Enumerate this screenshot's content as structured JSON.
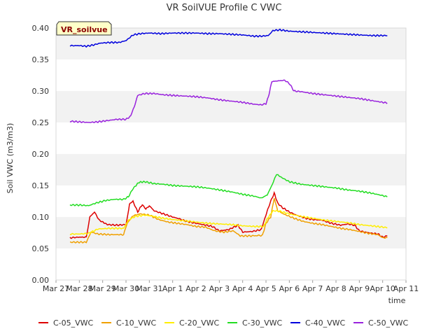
{
  "chart_data": {
    "type": "line",
    "title": "VR SoilVUE Profile C VWC",
    "xlabel": "time",
    "ylabel": "Soil VWC (m3/m3)",
    "badge": "VR_soilvue",
    "x_ticks": [
      "Mar 27",
      "Mar 28",
      "Mar 29",
      "Mar 30",
      "Mar 31",
      "Apr 1",
      "Apr 2",
      "Apr 3",
      "Apr 4",
      "Apr 5",
      "Apr 6",
      "Apr 7",
      "Apr 8",
      "Apr 9",
      "Apr 10",
      "Apr 11"
    ],
    "y_ticks": [
      "0.00",
      "0.05",
      "0.10",
      "0.15",
      "0.20",
      "0.25",
      "0.30",
      "0.35",
      "0.40"
    ],
    "xlim": [
      0,
      15
    ],
    "ylim": [
      0,
      0.4
    ],
    "grid": "horizontal bands",
    "legend_position": "bottom",
    "series": [
      {
        "name": "C-05_VWC",
        "color": "#dd0000",
        "points": [
          [
            0.6,
            0.067
          ],
          [
            1.0,
            0.068
          ],
          [
            1.3,
            0.068
          ],
          [
            1.45,
            0.1
          ],
          [
            1.65,
            0.108
          ],
          [
            1.85,
            0.095
          ],
          [
            2.2,
            0.088
          ],
          [
            2.6,
            0.087
          ],
          [
            3.0,
            0.088
          ],
          [
            3.15,
            0.12
          ],
          [
            3.3,
            0.125
          ],
          [
            3.5,
            0.108
          ],
          [
            3.7,
            0.12
          ],
          [
            3.85,
            0.112
          ],
          [
            4.0,
            0.118
          ],
          [
            4.2,
            0.11
          ],
          [
            4.6,
            0.105
          ],
          [
            5.0,
            0.1
          ],
          [
            5.3,
            0.097
          ],
          [
            5.6,
            0.093
          ],
          [
            6.0,
            0.09
          ],
          [
            6.3,
            0.088
          ],
          [
            6.7,
            0.085
          ],
          [
            7.0,
            0.078
          ],
          [
            7.4,
            0.08
          ],
          [
            7.8,
            0.087
          ],
          [
            8.0,
            0.076
          ],
          [
            8.4,
            0.077
          ],
          [
            8.8,
            0.08
          ],
          [
            8.95,
            0.098
          ],
          [
            9.15,
            0.12
          ],
          [
            9.35,
            0.138
          ],
          [
            9.5,
            0.122
          ],
          [
            9.7,
            0.115
          ],
          [
            10.0,
            0.108
          ],
          [
            10.3,
            0.103
          ],
          [
            10.7,
            0.098
          ],
          [
            11.0,
            0.096
          ],
          [
            11.4,
            0.095
          ],
          [
            11.8,
            0.09
          ],
          [
            12.2,
            0.087
          ],
          [
            12.5,
            0.089
          ],
          [
            12.8,
            0.087
          ],
          [
            13.0,
            0.078
          ],
          [
            13.4,
            0.075
          ],
          [
            13.8,
            0.073
          ],
          [
            14.0,
            0.068
          ],
          [
            14.2,
            0.07
          ]
        ]
      },
      {
        "name": "C-10_VWC",
        "color": "#f0a000",
        "points": [
          [
            0.6,
            0.06
          ],
          [
            1.0,
            0.06
          ],
          [
            1.3,
            0.06
          ],
          [
            1.5,
            0.076
          ],
          [
            1.8,
            0.073
          ],
          [
            2.3,
            0.072
          ],
          [
            2.9,
            0.072
          ],
          [
            3.05,
            0.09
          ],
          [
            3.3,
            0.102
          ],
          [
            3.6,
            0.105
          ],
          [
            4.0,
            0.103
          ],
          [
            4.4,
            0.096
          ],
          [
            4.8,
            0.092
          ],
          [
            5.2,
            0.09
          ],
          [
            5.6,
            0.088
          ],
          [
            6.0,
            0.085
          ],
          [
            6.4,
            0.084
          ],
          [
            6.8,
            0.078
          ],
          [
            7.2,
            0.076
          ],
          [
            7.6,
            0.078
          ],
          [
            7.9,
            0.07
          ],
          [
            8.4,
            0.07
          ],
          [
            8.85,
            0.071
          ],
          [
            9.0,
            0.09
          ],
          [
            9.2,
            0.1
          ],
          [
            9.35,
            0.13
          ],
          [
            9.5,
            0.11
          ],
          [
            9.8,
            0.104
          ],
          [
            10.2,
            0.098
          ],
          [
            10.6,
            0.093
          ],
          [
            11.0,
            0.09
          ],
          [
            11.4,
            0.088
          ],
          [
            11.8,
            0.085
          ],
          [
            12.2,
            0.082
          ],
          [
            12.6,
            0.08
          ],
          [
            13.0,
            0.077
          ],
          [
            13.4,
            0.074
          ],
          [
            13.8,
            0.072
          ],
          [
            14.0,
            0.067
          ],
          [
            14.2,
            0.067
          ]
        ]
      },
      {
        "name": "C-20_VWC",
        "color": "#ffee00",
        "points": [
          [
            0.6,
            0.073
          ],
          [
            1.0,
            0.073
          ],
          [
            1.4,
            0.074
          ],
          [
            1.8,
            0.081
          ],
          [
            2.3,
            0.082
          ],
          [
            2.9,
            0.082
          ],
          [
            3.1,
            0.095
          ],
          [
            3.4,
            0.101
          ],
          [
            3.8,
            0.103
          ],
          [
            4.2,
            0.101
          ],
          [
            4.6,
            0.098
          ],
          [
            5.0,
            0.096
          ],
          [
            5.5,
            0.094
          ],
          [
            6.0,
            0.092
          ],
          [
            6.5,
            0.09
          ],
          [
            7.0,
            0.089
          ],
          [
            7.5,
            0.088
          ],
          [
            8.0,
            0.086
          ],
          [
            8.5,
            0.085
          ],
          [
            8.9,
            0.085
          ],
          [
            9.05,
            0.097
          ],
          [
            9.3,
            0.11
          ],
          [
            9.6,
            0.109
          ],
          [
            10.0,
            0.105
          ],
          [
            10.5,
            0.101
          ],
          [
            11.0,
            0.098
          ],
          [
            11.5,
            0.095
          ],
          [
            12.0,
            0.093
          ],
          [
            12.5,
            0.091
          ],
          [
            13.0,
            0.088
          ],
          [
            13.5,
            0.086
          ],
          [
            14.0,
            0.084
          ],
          [
            14.2,
            0.083
          ]
        ]
      },
      {
        "name": "C-30_VWC",
        "color": "#22dd22",
        "points": [
          [
            0.6,
            0.119
          ],
          [
            1.0,
            0.119
          ],
          [
            1.4,
            0.118
          ],
          [
            1.7,
            0.122
          ],
          [
            2.1,
            0.126
          ],
          [
            2.5,
            0.128
          ],
          [
            2.9,
            0.128
          ],
          [
            3.1,
            0.132
          ],
          [
            3.3,
            0.145
          ],
          [
            3.55,
            0.155
          ],
          [
            3.8,
            0.156
          ],
          [
            4.2,
            0.153
          ],
          [
            4.6,
            0.152
          ],
          [
            5.0,
            0.15
          ],
          [
            5.5,
            0.149
          ],
          [
            6.0,
            0.148
          ],
          [
            6.5,
            0.146
          ],
          [
            7.0,
            0.143
          ],
          [
            7.5,
            0.14
          ],
          [
            8.0,
            0.136
          ],
          [
            8.5,
            0.133
          ],
          [
            8.8,
            0.13
          ],
          [
            9.05,
            0.135
          ],
          [
            9.25,
            0.15
          ],
          [
            9.45,
            0.168
          ],
          [
            9.7,
            0.162
          ],
          [
            10.0,
            0.156
          ],
          [
            10.5,
            0.152
          ],
          [
            11.0,
            0.15
          ],
          [
            11.5,
            0.148
          ],
          [
            12.0,
            0.146
          ],
          [
            12.5,
            0.143
          ],
          [
            13.0,
            0.141
          ],
          [
            13.5,
            0.138
          ],
          [
            14.0,
            0.134
          ],
          [
            14.2,
            0.132
          ]
        ]
      },
      {
        "name": "C-40_VWC",
        "color": "#0000dd",
        "points": [
          [
            0.6,
            0.372
          ],
          [
            1.0,
            0.372
          ],
          [
            1.3,
            0.371
          ],
          [
            1.6,
            0.373
          ],
          [
            1.9,
            0.376
          ],
          [
            2.3,
            0.377
          ],
          [
            2.7,
            0.377
          ],
          [
            3.0,
            0.38
          ],
          [
            3.3,
            0.389
          ],
          [
            3.6,
            0.391
          ],
          [
            4.0,
            0.392
          ],
          [
            4.5,
            0.391
          ],
          [
            5.0,
            0.392
          ],
          [
            5.5,
            0.392
          ],
          [
            6.0,
            0.392
          ],
          [
            6.5,
            0.391
          ],
          [
            7.0,
            0.391
          ],
          [
            7.5,
            0.39
          ],
          [
            8.0,
            0.389
          ],
          [
            8.5,
            0.387
          ],
          [
            8.8,
            0.387
          ],
          [
            9.1,
            0.388
          ],
          [
            9.3,
            0.396
          ],
          [
            9.6,
            0.397
          ],
          [
            10.0,
            0.395
          ],
          [
            10.5,
            0.394
          ],
          [
            11.0,
            0.393
          ],
          [
            11.5,
            0.392
          ],
          [
            12.0,
            0.391
          ],
          [
            12.5,
            0.39
          ],
          [
            13.0,
            0.389
          ],
          [
            13.5,
            0.388
          ],
          [
            14.0,
            0.388
          ],
          [
            14.2,
            0.388
          ]
        ]
      },
      {
        "name": "C-50_VWC",
        "color": "#9922dd",
        "points": [
          [
            0.6,
            0.252
          ],
          [
            1.0,
            0.251
          ],
          [
            1.4,
            0.25
          ],
          [
            1.8,
            0.251
          ],
          [
            2.2,
            0.253
          ],
          [
            2.6,
            0.255
          ],
          [
            3.0,
            0.255
          ],
          [
            3.2,
            0.26
          ],
          [
            3.35,
            0.275
          ],
          [
            3.5,
            0.293
          ],
          [
            3.8,
            0.296
          ],
          [
            4.2,
            0.296
          ],
          [
            4.6,
            0.294
          ],
          [
            5.0,
            0.293
          ],
          [
            5.5,
            0.292
          ],
          [
            6.0,
            0.291
          ],
          [
            6.5,
            0.289
          ],
          [
            7.0,
            0.286
          ],
          [
            7.5,
            0.284
          ],
          [
            8.0,
            0.282
          ],
          [
            8.5,
            0.279
          ],
          [
            8.8,
            0.278
          ],
          [
            9.0,
            0.28
          ],
          [
            9.1,
            0.29
          ],
          [
            9.25,
            0.315
          ],
          [
            9.5,
            0.316
          ],
          [
            9.8,
            0.317
          ],
          [
            10.0,
            0.312
          ],
          [
            10.2,
            0.3
          ],
          [
            10.5,
            0.299
          ],
          [
            11.0,
            0.296
          ],
          [
            11.5,
            0.294
          ],
          [
            12.0,
            0.292
          ],
          [
            12.5,
            0.29
          ],
          [
            13.0,
            0.288
          ],
          [
            13.5,
            0.285
          ],
          [
            14.0,
            0.282
          ],
          [
            14.2,
            0.281
          ]
        ]
      }
    ]
  }
}
